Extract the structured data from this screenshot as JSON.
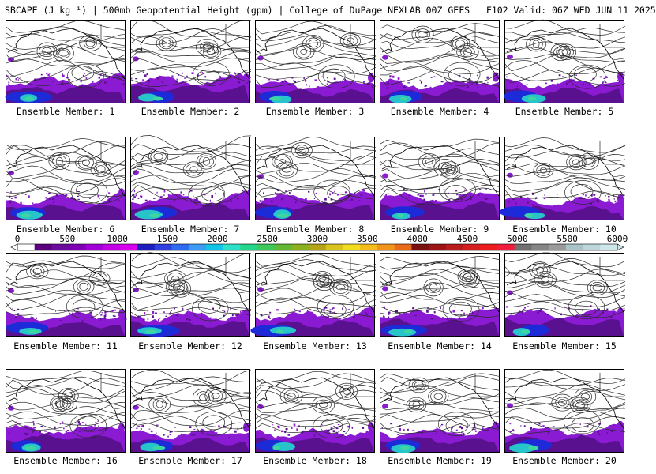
{
  "title": "SBCAPE (J kg⁻¹) | 500mb Geopotential Height (gpm) | College of DuPage NEXLAB 00Z GEFS | F102 Valid: 06Z WED JUN 11 2025",
  "panels": [
    {
      "label": "Ensemble Member: 1"
    },
    {
      "label": "Ensemble Member: 2"
    },
    {
      "label": "Ensemble Member: 3"
    },
    {
      "label": "Ensemble Member: 4"
    },
    {
      "label": "Ensemble Member: 5"
    },
    {
      "label": "Ensemble Member: 6"
    },
    {
      "label": "Ensemble Member: 7"
    },
    {
      "label": "Ensemble Member: 8"
    },
    {
      "label": "Ensemble Member: 9"
    },
    {
      "label": "Ensemble Member: 10"
    },
    {
      "label": "Ensemble Member: 11"
    },
    {
      "label": "Ensemble Member: 12"
    },
    {
      "label": "Ensemble Member: 13"
    },
    {
      "label": "Ensemble Member: 14"
    },
    {
      "label": "Ensemble Member: 15"
    },
    {
      "label": "Ensemble Member: 16"
    },
    {
      "label": "Ensemble Member: 17"
    },
    {
      "label": "Ensemble Member: 18"
    },
    {
      "label": "Ensemble Member: 19"
    },
    {
      "label": "Ensemble Member: 20"
    }
  ],
  "colorbar": {
    "ticks": [
      "0",
      "500",
      "1000",
      "1500",
      "2000",
      "2500",
      "3000",
      "3500",
      "4000",
      "4500",
      "5000",
      "5500",
      "6000"
    ],
    "min": 0,
    "max": 6000,
    "colors": [
      "#ffffff",
      "#5b007f",
      "#6b0c9c",
      "#8000b5",
      "#a100d6",
      "#c400e6",
      "#d900f0",
      "#1e1ebe",
      "#2f3fe0",
      "#2d6bf0",
      "#3c9cf5",
      "#12c5e8",
      "#2ee0c8",
      "#24d68a",
      "#3ec85a",
      "#62b832",
      "#8bb21e",
      "#b5a418",
      "#d9c41b",
      "#f2dc20",
      "#f5bd1c",
      "#f0941a",
      "#e96a17",
      "#7a1010",
      "#9c1414",
      "#b81b1b",
      "#d42020",
      "#ee1c1c",
      "#f01e3c",
      "#707070",
      "#858585",
      "#9a9a9a",
      "#a9c4c8",
      "#bcd6da",
      "#cfe6ea"
    ],
    "terrain_colors": {
      "low": "#5a1190",
      "mid": "#8a1bd3",
      "high": "#27c5c9",
      "peak": "#3ed6a0",
      "deep": "#1d2ad8"
    }
  }
}
